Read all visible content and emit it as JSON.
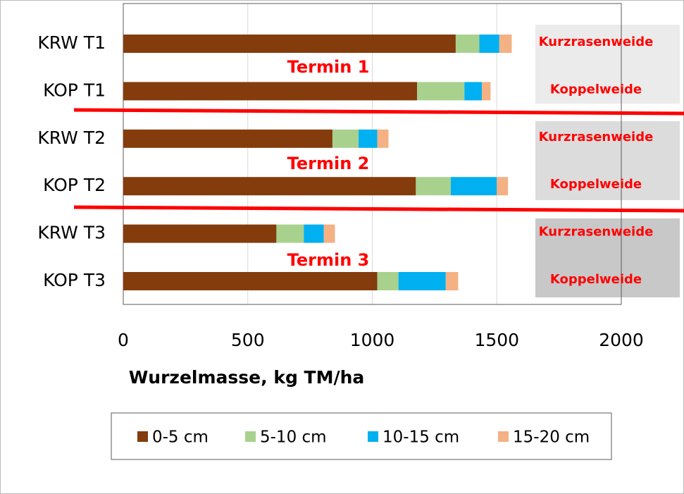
{
  "chart_data": {
    "type": "stacked-barh",
    "categories": [
      "KRW T1",
      "KOP T1",
      "KRW T2",
      "KOP T2",
      "KRW T3",
      "KOP T3"
    ],
    "series": [
      {
        "name": "0-5 cm",
        "color": "#843c0c",
        "values": [
          1335,
          1180,
          840,
          1175,
          615,
          1020
        ]
      },
      {
        "name": "5-10 cm",
        "color": "#a9d18e",
        "values": [
          95,
          190,
          105,
          140,
          110,
          85
        ]
      },
      {
        "name": "10-15 cm",
        "color": "#00b0f0",
        "values": [
          80,
          70,
          75,
          185,
          80,
          190
        ]
      },
      {
        "name": "15-20 cm",
        "color": "#f4b183",
        "values": [
          50,
          35,
          45,
          45,
          45,
          50
        ]
      }
    ],
    "xlabel": "Wurzelmasse, kg TM/ha",
    "xlim": [
      0,
      2000
    ],
    "xticks": [
      0,
      500,
      1000,
      1500,
      2000
    ],
    "grid": true,
    "legend": "bottom",
    "termin_labels": [
      "Termin 1",
      "Termin 2",
      "Termin 3"
    ],
    "side_labels": [
      "Kurzrasenweide",
      "Koppelweide",
      "Kurzrasenweide",
      "Koppelweide",
      "Kurzrasenweide",
      "Koppelweide"
    ]
  }
}
